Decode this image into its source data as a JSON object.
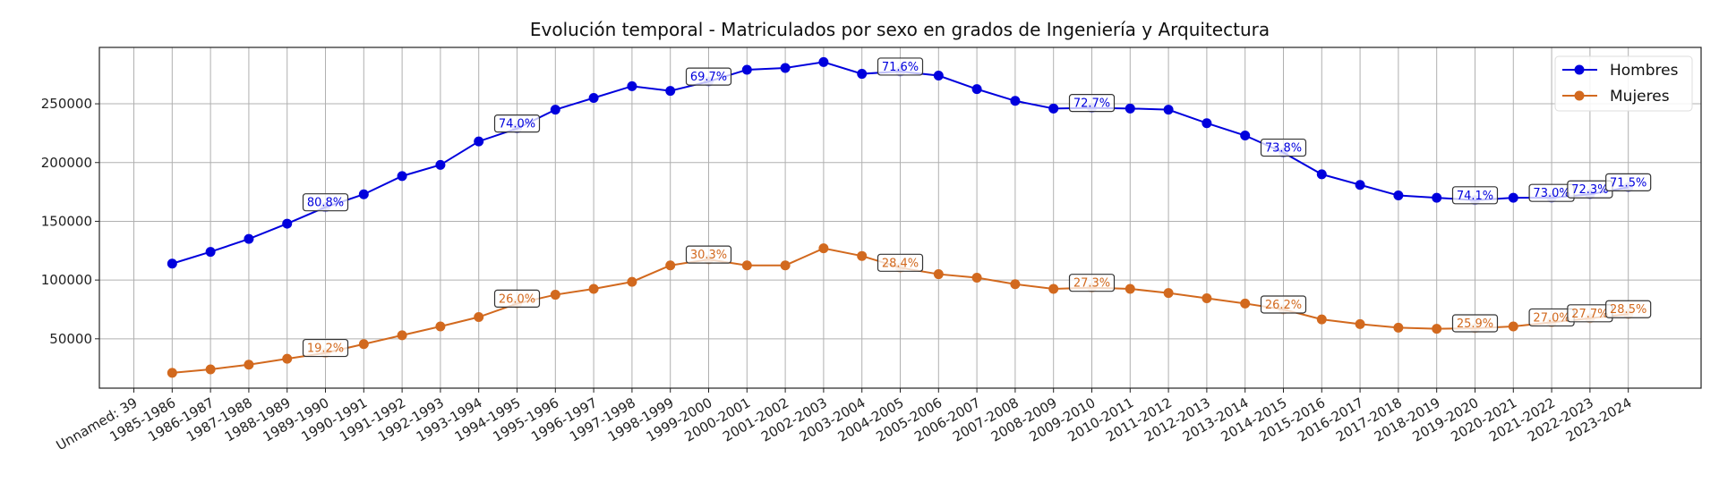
{
  "chart_data": {
    "type": "line",
    "title": "Evolución temporal - Matriculados por sexo en grados de Ingeniería y Arquitectura",
    "xlabel": "",
    "ylabel": "",
    "categories": [
      "Unnamed: 39",
      "1985-1986",
      "1986-1987",
      "1987-1988",
      "1988-1989",
      "1989-1990",
      "1990-1991",
      "1991-1992",
      "1992-1993",
      "1993-1994",
      "1994-1995",
      "1995-1996",
      "1996-1997",
      "1997-1998",
      "1998-1999",
      "1999-2000",
      "2000-2001",
      "2001-2002",
      "2002-2003",
      "2003-2004",
      "2004-2005",
      "2005-2006",
      "2006-2007",
      "2007-2008",
      "2008-2009",
      "2009-2010",
      "2010-2011",
      "2011-2012",
      "2012-2013",
      "2013-2014",
      "2014-2015",
      "2015-2016",
      "2016-2017",
      "2017-2018",
      "2018-2019",
      "2019-2020",
      "2020-2021",
      "2021-2022",
      "2022-2023",
      "2023-2024"
    ],
    "series": [
      {
        "name": "Hombres",
        "color": "#0000dd",
        "values": [
          null,
          114000,
          124000,
          135000,
          148000,
          162000,
          173000,
          188500,
          198000,
          218000,
          229000,
          245000,
          255000,
          265000,
          261000,
          269000,
          279000,
          280500,
          285500,
          275500,
          277500,
          274000,
          262500,
          252500,
          246000,
          246500,
          246000,
          245000,
          233500,
          223000,
          208500,
          190000,
          181000,
          172000,
          170000,
          168000,
          170000,
          170000,
          173000,
          179000
        ]
      },
      {
        "name": "Mujeres",
        "color": "#d2691e",
        "values": [
          null,
          21000,
          24000,
          28000,
          33000,
          38000,
          45500,
          53000,
          60500,
          68500,
          80000,
          87500,
          92500,
          98500,
          112500,
          117500,
          112500,
          112500,
          127000,
          120500,
          110500,
          105000,
          102000,
          96500,
          92500,
          93500,
          92500,
          89000,
          84500,
          80000,
          75000,
          66500,
          62500,
          59500,
          58500,
          59000,
          60500,
          64000,
          67500,
          71000
        ]
      }
    ],
    "annotations": [
      {
        "category": "1989-1990",
        "hombres": "80.8%",
        "mujeres": "19.2%"
      },
      {
        "category": "1994-1995",
        "hombres": "74.0%",
        "mujeres": "26.0%"
      },
      {
        "category": "1999-2000",
        "hombres": "69.7%",
        "mujeres": "30.3%"
      },
      {
        "category": "2004-2005",
        "hombres": "71.6%",
        "mujeres": "28.4%"
      },
      {
        "category": "2009-2010",
        "hombres": "72.7%",
        "mujeres": "27.3%"
      },
      {
        "category": "2014-2015",
        "hombres": "73.8%",
        "mujeres": "26.2%"
      },
      {
        "category": "2019-2020",
        "hombres": "74.1%",
        "mujeres": "25.9%"
      },
      {
        "category": "2021-2022",
        "hombres": "73.0%",
        "mujeres": "27.0%"
      },
      {
        "category": "2022-2023",
        "hombres": "72.3%",
        "mujeres": "27.7%"
      },
      {
        "category": "2023-2024",
        "hombres": "71.5%",
        "mujeres": "28.5%"
      }
    ],
    "yticks": [
      50000,
      100000,
      150000,
      200000,
      250000
    ],
    "ylim": [
      8000,
      298000
    ],
    "grid": true,
    "legend": "top-right"
  }
}
